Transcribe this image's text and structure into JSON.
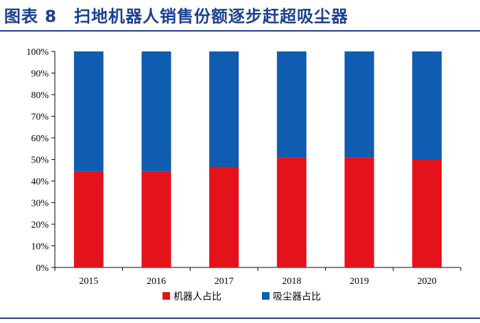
{
  "header": {
    "title": "图表 8　扫地机器人销售份额逐步赶超吸尘器"
  },
  "chart_data": {
    "type": "bar",
    "stacked": true,
    "categories": [
      "2015",
      "2016",
      "2017",
      "2018",
      "2019",
      "2020"
    ],
    "series": [
      {
        "name": "机器人占比",
        "color": "#e3121b",
        "values": [
          44.5,
          44.5,
          46.5,
          51,
          51,
          50
        ]
      },
      {
        "name": "吸尘器占比",
        "color": "#0f5cb0",
        "values": [
          55.5,
          55.5,
          53.5,
          49,
          49,
          50
        ]
      }
    ],
    "ylim": [
      0,
      100
    ],
    "yticks": [
      "0%",
      "10%",
      "20%",
      "30%",
      "40%",
      "50%",
      "60%",
      "70%",
      "80%",
      "90%",
      "100%"
    ],
    "xlabel": "",
    "ylabel": "",
    "grid": false,
    "legend_position": "bottom"
  }
}
